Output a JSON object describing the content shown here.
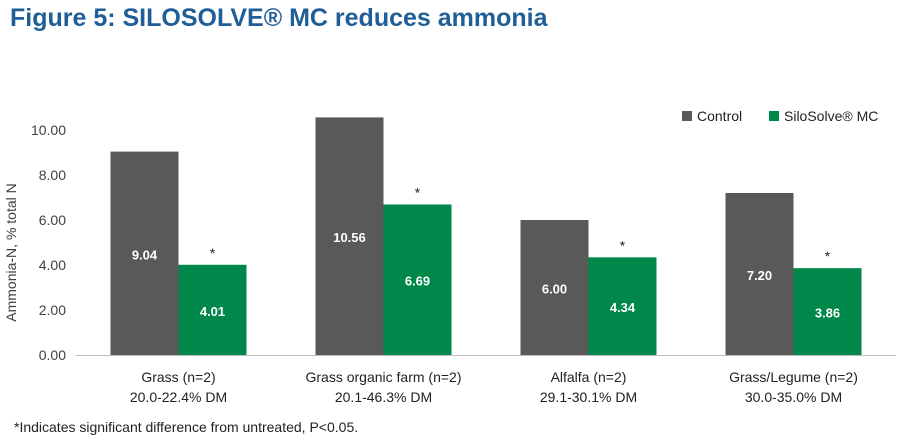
{
  "title": "Figure 5: SILOSOLVE® MC reduces ammonia",
  "footnote": "*Indicates significant difference from untreated, P<0.05.",
  "colors": {
    "title": "#1f5e96",
    "control": "#595959",
    "treated": "#00874a"
  },
  "chart_data": {
    "type": "bar",
    "ylabel": "Ammonia-N, % total N",
    "xlabel": "",
    "ylim": [
      0,
      10
    ],
    "yticks": [
      "0.00",
      "2.00",
      "4.00",
      "6.00",
      "8.00",
      "10.00"
    ],
    "grid": false,
    "legend_position": "top-right",
    "categories": [
      {
        "line1": "Grass   (n=2)",
        "line2": "20.0-22.4% DM"
      },
      {
        "line1": "Grass organic farm (n=2)",
        "line2": "20.1-46.3% DM"
      },
      {
        "line1": "Alfalfa (n=2)",
        "line2": "29.1-30.1% DM"
      },
      {
        "line1": "Grass/Legume (n=2)",
        "line2": "30.0-35.0%  DM"
      }
    ],
    "series": [
      {
        "name": "Control",
        "values": [
          9.04,
          10.56,
          6.0,
          7.2
        ],
        "labels": [
          "9.04",
          "10.56",
          "6.00",
          "7.20"
        ],
        "color": "#595959"
      },
      {
        "name": "SiloSolve® MC",
        "values": [
          4.01,
          6.69,
          4.34,
          3.86
        ],
        "labels": [
          "4.01",
          "6.69",
          "4.34",
          "3.86"
        ],
        "color": "#00874a",
        "significance": [
          "*",
          "*",
          "*",
          "*"
        ]
      }
    ]
  }
}
